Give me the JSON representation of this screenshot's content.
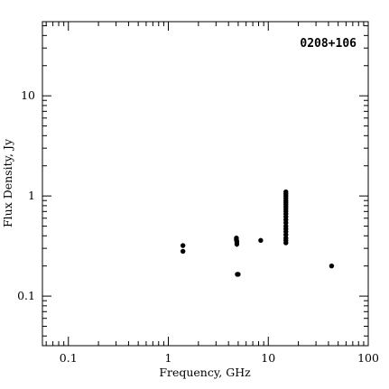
{
  "chart_data": {
    "type": "scatter",
    "title": "0208+106",
    "xlabel": "Frequency, GHz",
    "ylabel": "Flux Density, Jy",
    "x_scale": "log",
    "y_scale": "log",
    "xlim": [
      0.055,
      100
    ],
    "ylim": [
      0.032,
      55
    ],
    "x_tick_labels": [
      "0.1",
      "1",
      "10",
      "100"
    ],
    "y_tick_labels": [
      "0.1",
      "1",
      "10"
    ],
    "grid": false,
    "marker_color": "#000000",
    "points": [
      {
        "x": 1.4,
        "y": 0.32
      },
      {
        "x": 1.4,
        "y": 0.28
      },
      {
        "x": 4.8,
        "y": 0.38
      },
      {
        "x": 4.8,
        "y": 0.365
      },
      {
        "x": 4.85,
        "y": 0.35
      },
      {
        "x": 4.85,
        "y": 0.33,
        "err": 0.02
      },
      {
        "x": 4.9,
        "y": 0.165
      },
      {
        "x": 5.0,
        "y": 0.165
      },
      {
        "x": 8.4,
        "y": 0.36
      },
      {
        "x": 15,
        "y": 1.1
      },
      {
        "x": 15,
        "y": 1.05
      },
      {
        "x": 15,
        "y": 1.0
      },
      {
        "x": 15,
        "y": 0.95
      },
      {
        "x": 15,
        "y": 0.9
      },
      {
        "x": 15,
        "y": 0.86
      },
      {
        "x": 15,
        "y": 0.82
      },
      {
        "x": 15,
        "y": 0.78
      },
      {
        "x": 15,
        "y": 0.74
      },
      {
        "x": 15,
        "y": 0.7
      },
      {
        "x": 15,
        "y": 0.66
      },
      {
        "x": 15,
        "y": 0.62
      },
      {
        "x": 15,
        "y": 0.58
      },
      {
        "x": 15,
        "y": 0.54
      },
      {
        "x": 15,
        "y": 0.5
      },
      {
        "x": 15,
        "y": 0.47
      },
      {
        "x": 15,
        "y": 0.44
      },
      {
        "x": 15,
        "y": 0.41
      },
      {
        "x": 15,
        "y": 0.38
      },
      {
        "x": 15,
        "y": 0.36
      },
      {
        "x": 15,
        "y": 0.34
      },
      {
        "x": 43,
        "y": 0.2
      }
    ]
  }
}
